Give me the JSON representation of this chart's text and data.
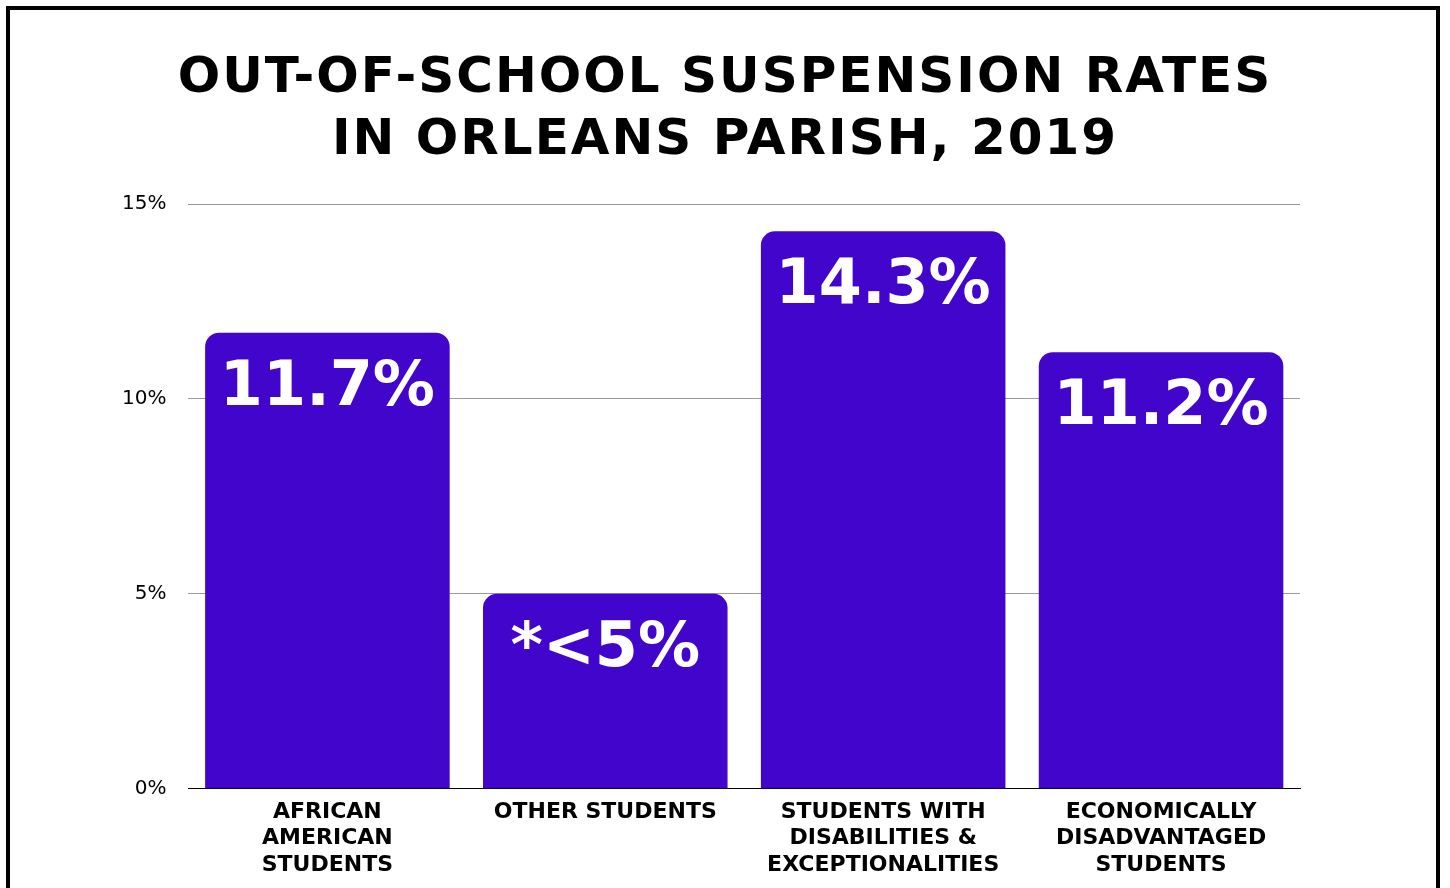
{
  "chart_data": {
    "type": "bar",
    "title": "OUT-OF-SCHOOL SUSPENSION RATES IN ORLEANS PARISH, 2019",
    "categories": [
      "AFRICAN AMERICAN STUDENTS",
      "OTHER STUDENTS",
      "STUDENTS WITH DISABILITIES & EXCEPTIONALITIES",
      "ECONOMICALLY DISADVANTAGED STUDENTS"
    ],
    "values": [
      11.7,
      5,
      14.3,
      11.2
    ],
    "value_labels": [
      "11.7%",
      "*<5%",
      "14.3%",
      "11.2%"
    ],
    "color": "#4105cc",
    "ylim": [
      0,
      15
    ],
    "yticks": [
      {
        "value": 0,
        "label": "0%"
      },
      {
        "value": 5,
        "label": "5%"
      },
      {
        "value": 10,
        "label": "10%"
      },
      {
        "value": 15,
        "label": "15%"
      }
    ],
    "grid": "y"
  }
}
